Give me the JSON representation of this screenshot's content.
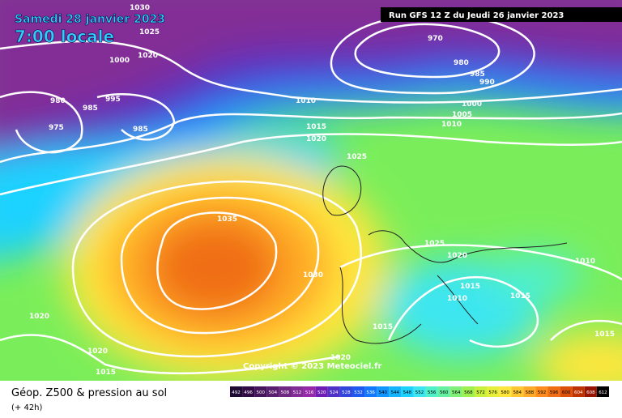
{
  "header": {
    "date": "Samedi 28 janvier 2023",
    "time": "7:00 locale",
    "run": "Run GFS 12 Z du Jeudi 26 janvier 2023"
  },
  "copyright": "Copyright © 2023 Meteociel.fr",
  "footer": {
    "title": "Géop. Z500 & pression au sol",
    "subtitle": "(+ 42h)"
  },
  "isobar_labels": [
    1030,
    1025,
    1020,
    1000,
    980,
    985,
    995,
    975,
    985,
    970,
    980,
    985,
    990,
    1010,
    1000,
    1005,
    1010,
    1015,
    1020,
    1025,
    1035,
    1030,
    1025,
    1020,
    1015,
    1010,
    1015,
    1010,
    1015,
    1020,
    1020,
    1015,
    1020,
    1015
  ],
  "scale": {
    "labels": [
      "492",
      "496",
      "500",
      "504",
      "508",
      "512",
      "516",
      "520",
      "524",
      "528",
      "532",
      "536",
      "540",
      "544",
      "548",
      "552",
      "556",
      "560",
      "564",
      "568",
      "572",
      "576",
      "580",
      "584",
      "588",
      "592",
      "596",
      "600",
      "604",
      "608",
      "612"
    ],
    "colors": [
      "#1e0a32",
      "#320a46",
      "#46145a",
      "#5a1e6e",
      "#6e2882",
      "#822d96",
      "#9628aa",
      "#6e1eb4",
      "#5032c8",
      "#3246dc",
      "#1e5af0",
      "#1478ff",
      "#1496ff",
      "#14b4ff",
      "#1ed2ff",
      "#3ce6f0",
      "#50f0c8",
      "#64f0a0",
      "#82f078",
      "#a0f050",
      "#c8f03c",
      "#e6f03c",
      "#ffe63c",
      "#ffc832",
      "#ffaa28",
      "#ff8c1e",
      "#f06e14",
      "#dc500a",
      "#be3200",
      "#961400",
      "#000000"
    ]
  }
}
